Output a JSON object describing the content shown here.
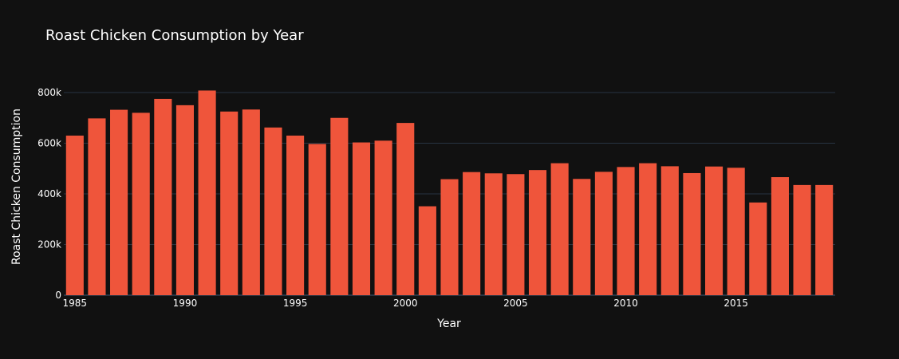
{
  "chart_data": {
    "type": "bar",
    "title": "Roast Chicken Consumption by Year",
    "xlabel": "Year",
    "ylabel": "Roast Chicken Consumption",
    "x": [
      1985,
      1986,
      1987,
      1988,
      1989,
      1990,
      1991,
      1992,
      1993,
      1994,
      1995,
      1996,
      1997,
      1998,
      1999,
      2000,
      2001,
      2002,
      2003,
      2004,
      2005,
      2006,
      2007,
      2008,
      2009,
      2010,
      2011,
      2012,
      2013,
      2014,
      2015,
      2016,
      2017,
      2018,
      2019
    ],
    "values": [
      630000,
      698000,
      732000,
      720000,
      775000,
      750000,
      808000,
      725000,
      733000,
      662000,
      630000,
      597000,
      700000,
      603000,
      610000,
      680000,
      351000,
      458000,
      486000,
      481000,
      478000,
      494000,
      521000,
      459000,
      487000,
      506000,
      521000,
      509000,
      482000,
      508000,
      503000,
      366000,
      466000,
      435000,
      435000
    ],
    "ylim": [
      0,
      800000
    ],
    "yticks": [
      0,
      200000,
      400000,
      600000,
      800000
    ],
    "ytick_labels": [
      "0",
      "200k",
      "400k",
      "600k",
      "800k"
    ],
    "xticks": [
      1985,
      1990,
      1995,
      2000,
      2005,
      2010,
      2015
    ],
    "xtick_labels": [
      "1985",
      "1990",
      "1995",
      "2000",
      "2005",
      "2010",
      "2015"
    ],
    "grid": true,
    "bar_color": "#ef553b",
    "background": "#111111"
  }
}
